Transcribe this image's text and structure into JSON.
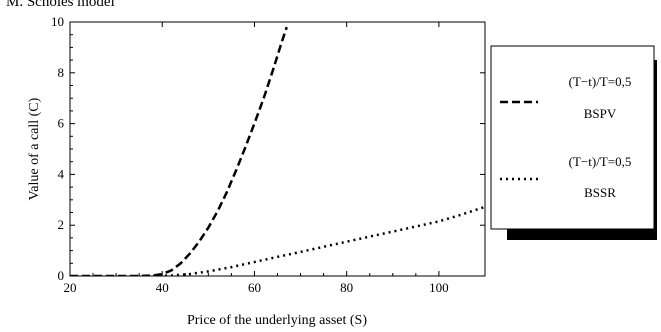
{
  "header": {
    "title_fragment": "M. Scholes model"
  },
  "chart_data": {
    "type": "line",
    "xlabel": "Price  of the underlying   asset  (S)",
    "ylabel": "Value of a call  (C)",
    "xlim": [
      20,
      110
    ],
    "ylim": [
      0,
      10
    ],
    "xticks": [
      20,
      40,
      60,
      80,
      100
    ],
    "yticks": [
      0,
      2,
      4,
      6,
      8,
      10
    ],
    "grid": false,
    "legend_position": "right",
    "series": [
      {
        "name": "BSPV",
        "legend_line1": "(T−t)/T=0,5",
        "legend_line2": "BSPV",
        "line_style": "dashed",
        "color": "#000000",
        "x": [
          20,
          25,
          30,
          35,
          38,
          40,
          42,
          44,
          46,
          48,
          50,
          52,
          54,
          56,
          58,
          60,
          62,
          64,
          66,
          67
        ],
        "y": [
          0,
          0,
          0,
          0,
          0.02,
          0.08,
          0.22,
          0.5,
          0.88,
          1.35,
          1.9,
          2.55,
          3.3,
          4.15,
          5.05,
          6.0,
          7.0,
          8.1,
          9.25,
          9.8
        ]
      },
      {
        "name": "BSSR",
        "legend_line1": "(T−t)/T=0,5",
        "legend_line2": "BSSR",
        "line_style": "dotted",
        "color": "#000000",
        "x": [
          38,
          42,
          46,
          50,
          55,
          60,
          65,
          70,
          75,
          80,
          85,
          90,
          95,
          100,
          105,
          110
        ],
        "y": [
          0,
          0.02,
          0.08,
          0.18,
          0.35,
          0.55,
          0.75,
          0.95,
          1.15,
          1.35,
          1.55,
          1.75,
          1.95,
          2.15,
          2.42,
          2.72
        ]
      }
    ]
  }
}
